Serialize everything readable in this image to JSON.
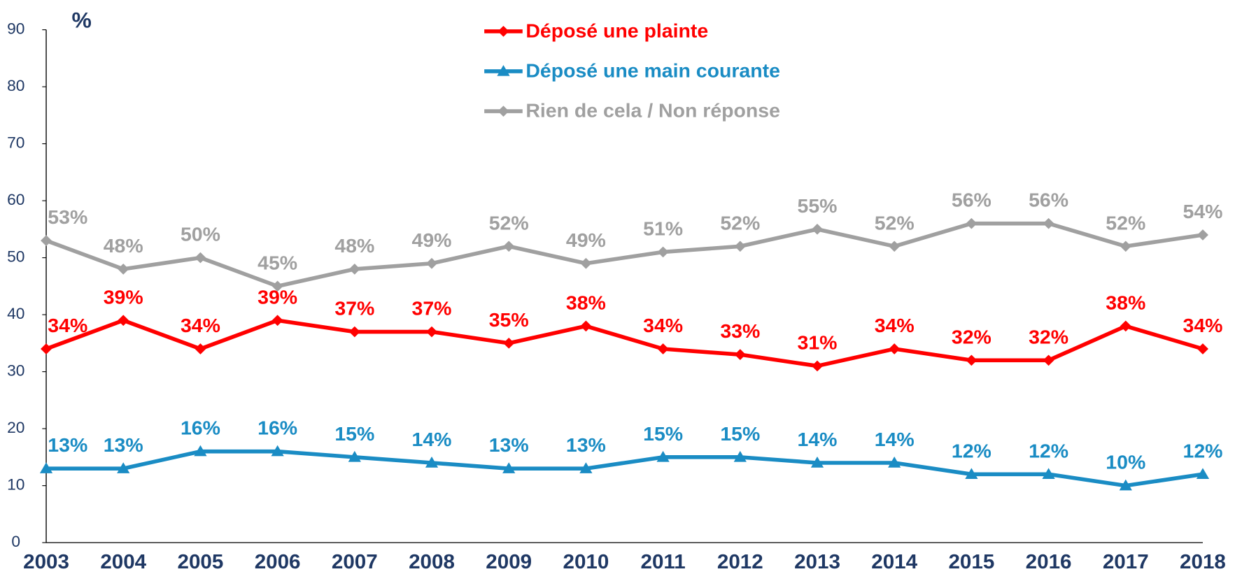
{
  "chart_data": {
    "type": "line",
    "ylabel": "%",
    "categories": [
      "2003",
      "2004",
      "2005",
      "2006",
      "2007",
      "2008",
      "2009",
      "2010",
      "2011",
      "2012",
      "2013",
      "2014",
      "2015",
      "2016",
      "2017",
      "2018"
    ],
    "series": [
      {
        "name": "Déposé une plainte",
        "color": "#ff0000",
        "marker": "diamond",
        "values": [
          34,
          39,
          34,
          39,
          37,
          37,
          35,
          38,
          34,
          33,
          31,
          34,
          32,
          32,
          38,
          34
        ],
        "value_labels": [
          "34%",
          "39%",
          "34%",
          "39%",
          "37%",
          "37%",
          "35%",
          "38%",
          "34%",
          "33%",
          "31%",
          "34%",
          "32%",
          "32%",
          "38%",
          "34%"
        ]
      },
      {
        "name": "Déposé une main courante",
        "color": "#1a8cc4",
        "marker": "triangle",
        "values": [
          13,
          13,
          16,
          16,
          15,
          14,
          13,
          13,
          15,
          15,
          14,
          14,
          12,
          12,
          10,
          12
        ],
        "value_labels": [
          "13%",
          "13%",
          "16%",
          "16%",
          "15%",
          "14%",
          "13%",
          "13%",
          "15%",
          "15%",
          "14%",
          "14%",
          "12%",
          "12%",
          "10%",
          "12%"
        ]
      },
      {
        "name": "Rien de cela / Non réponse",
        "color": "#a0a0a0",
        "marker": "diamond",
        "values": [
          53,
          48,
          50,
          45,
          48,
          49,
          52,
          49,
          51,
          52,
          55,
          52,
          56,
          56,
          52,
          54
        ],
        "value_labels": [
          "53%",
          "48%",
          "50%",
          "45%",
          "48%",
          "49%",
          "52%",
          "49%",
          "51%",
          "52%",
          "55%",
          "52%",
          "56%",
          "56%",
          "52%",
          "54%"
        ]
      }
    ],
    "ylim": [
      0,
      90
    ],
    "yticks": [
      0,
      10,
      20,
      30,
      40,
      50,
      60,
      70,
      80,
      90
    ],
    "grid": false,
    "legend": "top"
  }
}
